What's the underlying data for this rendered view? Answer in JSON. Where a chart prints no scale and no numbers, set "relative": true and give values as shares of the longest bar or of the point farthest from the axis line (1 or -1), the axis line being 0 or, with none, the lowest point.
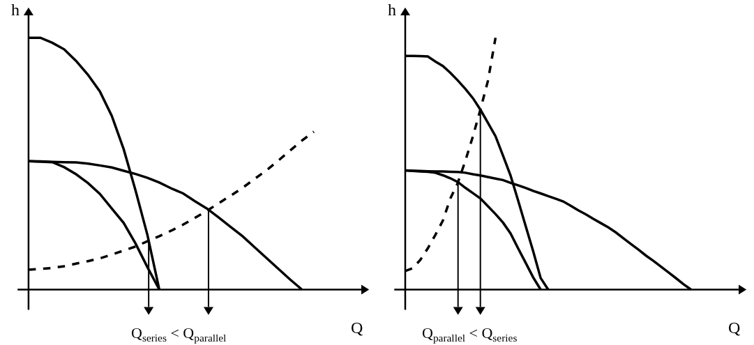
{
  "chart_data": [
    {
      "type": "line",
      "relative": true,
      "xlabel": "Q",
      "ylabel": "h",
      "marker": "none",
      "grid": false,
      "categories": [
        null,
        null,
        null,
        null,
        null,
        null,
        null,
        null,
        null,
        null,
        null,
        null,
        null,
        null,
        null,
        null,
        null,
        null,
        null,
        null,
        null,
        null,
        null,
        null,
        null
      ],
      "series": [
        {
          "color": "#000000",
          "line_style": "solid",
          "values": [
            1,
            1,
            0.98,
            0.954,
            0.908,
            0.853,
            0.787,
            0.69,
            0.558,
            0.394,
            0.217,
            0,
            null,
            null,
            null,
            null,
            null,
            null,
            null,
            null,
            null,
            null,
            null,
            null,
            null
          ]
        },
        {
          "color": "#000000",
          "line_style": "solid",
          "values": [
            0.51,
            0.509,
            0.507,
            0.506,
            0.505,
            0.5,
            0.493,
            0.485,
            0.472,
            0.459,
            0.444,
            0.425,
            0.402,
            0.382,
            0.351,
            0.322,
            0.286,
            0.249,
            0.212,
            0.169,
            0.126,
            0.083,
            0.04,
            0,
            null
          ]
        },
        {
          "color": "#000000",
          "line_style": "solid",
          "values": [
            0.51,
            0.508,
            0.506,
            0.486,
            0.458,
            0.423,
            0.38,
            0.322,
            0.265,
            0.183,
            0.089,
            0,
            null,
            null,
            null,
            null,
            null,
            null,
            null,
            null,
            null,
            null,
            null,
            null,
            null
          ]
        },
        {
          "color": "#000000",
          "line_style": "dashed",
          "values": [
            0.079,
            0.082,
            0.086,
            0.093,
            0.103,
            0.113,
            0.124,
            0.139,
            0.155,
            0.171,
            0.192,
            0.212,
            0.234,
            0.258,
            0.285,
            0.313,
            0.343,
            0.373,
            0.404,
            0.439,
            0.473,
            0.512,
            0.552,
            0.592,
            0.627
          ]
        }
      ],
      "annotations": [
        {
          "text": "Q$_{series}$ < Q$_{parallel}$"
        }
      ]
    },
    {
      "type": "line",
      "relative": true,
      "xlabel": "Q",
      "ylabel": "h",
      "marker": "none",
      "grid": false,
      "categories": [
        null,
        null,
        null,
        null,
        null,
        null,
        null,
        null,
        null,
        null,
        null,
        null,
        null,
        null,
        null,
        null,
        null,
        null,
        null,
        null,
        null,
        null,
        null,
        null,
        null,
        null,
        null,
        null,
        null,
        null,
        null,
        null,
        null,
        null,
        null,
        null,
        null,
        null,
        null
      ],
      "series": [
        {
          "color": "#000000",
          "line_style": "solid",
          "values": [
            0.928,
            0.928,
            0.927,
            0.926,
            0.906,
            0.888,
            0.861,
            0.83,
            0.797,
            0.76,
            0.714,
            0.662,
            0.609,
            0.532,
            0.453,
            0.354,
            0.253,
            0.153,
            0.046,
            0,
            null,
            null,
            null,
            null,
            null,
            null,
            null,
            null,
            null,
            null,
            null,
            null,
            null,
            null,
            null,
            null,
            null,
            null,
            null
          ]
        },
        {
          "color": "#000000",
          "line_style": "solid",
          "values": [
            0.473,
            0.471,
            0.469,
            0.468,
            0.464,
            0.454,
            0.442,
            0.427,
            0.404,
            0.383,
            0.362,
            0.331,
            0.3,
            0.266,
            0.223,
            0.164,
            0.107,
            0.049,
            0,
            null,
            null,
            null,
            null,
            null,
            null,
            null,
            null,
            null,
            null,
            null,
            null,
            null,
            null,
            null,
            null,
            null,
            null,
            null,
            null
          ]
        },
        {
          "color": "#000000",
          "line_style": "solid",
          "values": [
            0.473,
            0.472,
            0.471,
            0.47,
            0.469,
            0.469,
            0.468,
            0.467,
            0.464,
            0.458,
            0.453,
            0.447,
            0.441,
            0.435,
            0.424,
            0.414,
            0.404,
            0.392,
            0.382,
            0.371,
            0.361,
            0.35,
            0.333,
            0.315,
            0.299,
            0.281,
            0.264,
            0.247,
            0.227,
            0.204,
            0.181,
            0.159,
            0.135,
            0.114,
            0.091,
            0.068,
            0.045,
            0.021,
            0
          ]
        },
        {
          "color": "#000000",
          "line_style": "dashed",
          "values": [
            0.074,
            0.085,
            0.118,
            0.164,
            0.217,
            0.274,
            0.362,
            0.425,
            0.512,
            0.609,
            0.716,
            0.83,
            1,
            null,
            null,
            null,
            null,
            null,
            null,
            null,
            null,
            null,
            null,
            null,
            null,
            null,
            null,
            null,
            null,
            null,
            null,
            null,
            null,
            null,
            null,
            null,
            null,
            null,
            null
          ]
        }
      ],
      "annotations": [
        {
          "text": "Q$_{parallel}$ < Q$_{series}$"
        }
      ]
    }
  ]
}
